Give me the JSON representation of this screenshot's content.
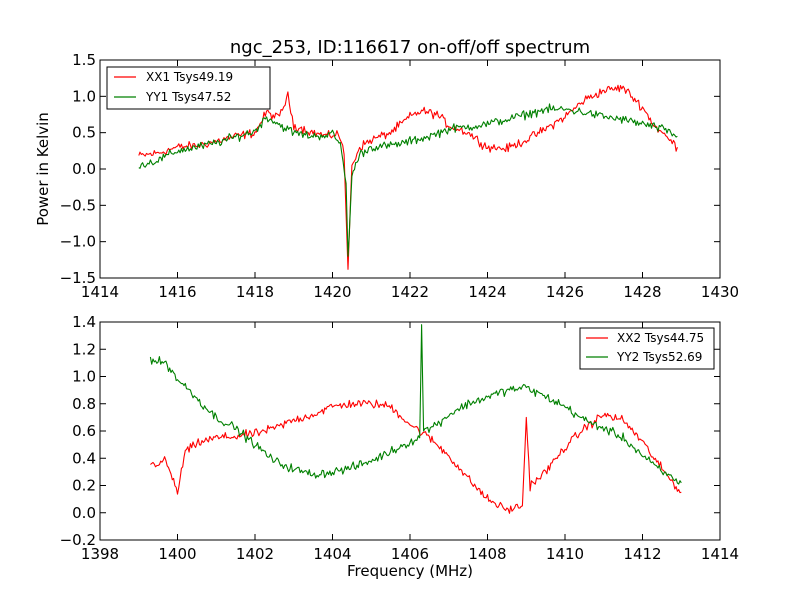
{
  "chart_data": [
    {
      "type": "line",
      "title": "ngc_253, ID:116617 on-off/off spectrum",
      "xlabel": "",
      "ylabel": "Power in Kelvin",
      "xlim": [
        1414,
        1430
      ],
      "ylim": [
        -1.5,
        1.5
      ],
      "xticks": [
        1414,
        1416,
        1418,
        1420,
        1422,
        1424,
        1426,
        1428,
        1430
      ],
      "yticks": [
        -1.5,
        -1.0,
        -0.5,
        0.0,
        0.5,
        1.0,
        1.5
      ],
      "ytick_labels": [
        "−1.5",
        "−1.0",
        "−0.5",
        "0.0",
        "0.5",
        "1.0",
        "1.5"
      ],
      "legend_position": "top-left",
      "grid": false,
      "series": [
        {
          "name": "XX1 Tsys49.19",
          "color": "#ff0000",
          "points": [
            [
              1415.0,
              0.18
            ],
            [
              1415.5,
              0.22
            ],
            [
              1416.0,
              0.3
            ],
            [
              1416.5,
              0.32
            ],
            [
              1417.0,
              0.38
            ],
            [
              1417.5,
              0.45
            ],
            [
              1418.0,
              0.5
            ],
            [
              1418.3,
              0.78
            ],
            [
              1418.6,
              0.7
            ],
            [
              1418.85,
              1.0
            ],
            [
              1419.0,
              0.6
            ],
            [
              1419.5,
              0.5
            ],
            [
              1419.9,
              0.45
            ],
            [
              1420.15,
              0.5
            ],
            [
              1420.3,
              0.2
            ],
            [
              1420.4,
              -1.38
            ],
            [
              1420.5,
              0.05
            ],
            [
              1420.7,
              0.3
            ],
            [
              1421.0,
              0.4
            ],
            [
              1421.5,
              0.5
            ],
            [
              1422.0,
              0.72
            ],
            [
              1422.3,
              0.8
            ],
            [
              1422.7,
              0.75
            ],
            [
              1423.0,
              0.6
            ],
            [
              1423.5,
              0.5
            ],
            [
              1424.0,
              0.3
            ],
            [
              1424.5,
              0.28
            ],
            [
              1425.0,
              0.4
            ],
            [
              1425.5,
              0.55
            ],
            [
              1426.0,
              0.72
            ],
            [
              1426.5,
              0.95
            ],
            [
              1427.0,
              1.08
            ],
            [
              1427.5,
              1.12
            ],
            [
              1428.0,
              0.85
            ],
            [
              1428.3,
              0.6
            ],
            [
              1428.6,
              0.45
            ],
            [
              1428.9,
              0.3
            ]
          ]
        },
        {
          "name": "YY1 Tsys47.52",
          "color": "#008000",
          "points": [
            [
              1415.0,
              0.05
            ],
            [
              1415.5,
              0.12
            ],
            [
              1416.0,
              0.25
            ],
            [
              1416.5,
              0.3
            ],
            [
              1417.0,
              0.36
            ],
            [
              1417.5,
              0.44
            ],
            [
              1418.0,
              0.52
            ],
            [
              1418.3,
              0.72
            ],
            [
              1418.6,
              0.62
            ],
            [
              1419.0,
              0.5
            ],
            [
              1419.5,
              0.45
            ],
            [
              1420.0,
              0.48
            ],
            [
              1420.2,
              0.35
            ],
            [
              1420.35,
              -0.2
            ],
            [
              1420.4,
              -1.2
            ],
            [
              1420.5,
              -0.1
            ],
            [
              1420.7,
              0.2
            ],
            [
              1421.0,
              0.3
            ],
            [
              1421.5,
              0.32
            ],
            [
              1422.0,
              0.38
            ],
            [
              1422.5,
              0.45
            ],
            [
              1423.0,
              0.55
            ],
            [
              1423.5,
              0.58
            ],
            [
              1424.0,
              0.62
            ],
            [
              1424.5,
              0.68
            ],
            [
              1425.0,
              0.75
            ],
            [
              1425.5,
              0.82
            ],
            [
              1426.0,
              0.82
            ],
            [
              1426.5,
              0.78
            ],
            [
              1427.0,
              0.72
            ],
            [
              1427.5,
              0.68
            ],
            [
              1428.0,
              0.62
            ],
            [
              1428.5,
              0.55
            ],
            [
              1428.9,
              0.45
            ]
          ]
        }
      ]
    },
    {
      "type": "line",
      "title": "",
      "xlabel": "Frequency (MHz)",
      "ylabel": "",
      "xlim": [
        1398,
        1414
      ],
      "ylim": [
        -0.2,
        1.4
      ],
      "xticks": [
        1398,
        1400,
        1402,
        1404,
        1406,
        1408,
        1410,
        1412,
        1414
      ],
      "yticks": [
        -0.2,
        0.0,
        0.2,
        0.4,
        0.6,
        0.8,
        1.0,
        1.2,
        1.4
      ],
      "ytick_labels": [
        "−0.2",
        "0.0",
        "0.2",
        "0.4",
        "0.6",
        "0.8",
        "1.0",
        "1.2",
        "1.4"
      ],
      "legend_position": "top-right",
      "grid": false,
      "series": [
        {
          "name": "XX2 Tsys44.75",
          "color": "#ff0000",
          "points": [
            [
              1399.3,
              0.35
            ],
            [
              1399.7,
              0.38
            ],
            [
              1400.0,
              0.15
            ],
            [
              1400.2,
              0.45
            ],
            [
              1400.6,
              0.52
            ],
            [
              1401.0,
              0.55
            ],
            [
              1401.5,
              0.56
            ],
            [
              1402.0,
              0.58
            ],
            [
              1402.5,
              0.62
            ],
            [
              1403.0,
              0.68
            ],
            [
              1403.5,
              0.72
            ],
            [
              1404.0,
              0.78
            ],
            [
              1404.5,
              0.8
            ],
            [
              1405.0,
              0.8
            ],
            [
              1405.5,
              0.78
            ],
            [
              1406.0,
              0.65
            ],
            [
              1406.5,
              0.55
            ],
            [
              1407.0,
              0.42
            ],
            [
              1407.5,
              0.25
            ],
            [
              1408.0,
              0.1
            ],
            [
              1408.5,
              0.02
            ],
            [
              1408.9,
              0.05
            ],
            [
              1409.0,
              0.7
            ],
            [
              1409.1,
              0.2
            ],
            [
              1409.5,
              0.3
            ],
            [
              1410.0,
              0.48
            ],
            [
              1410.5,
              0.62
            ],
            [
              1411.0,
              0.72
            ],
            [
              1411.5,
              0.68
            ],
            [
              1412.0,
              0.52
            ],
            [
              1412.5,
              0.32
            ],
            [
              1413.0,
              0.15
            ]
          ]
        },
        {
          "name": "YY2 Tsys52.69",
          "color": "#008000",
          "points": [
            [
              1399.3,
              1.12
            ],
            [
              1399.7,
              1.1
            ],
            [
              1400.0,
              0.98
            ],
            [
              1400.3,
              0.9
            ],
            [
              1400.7,
              0.78
            ],
            [
              1401.0,
              0.7
            ],
            [
              1401.5,
              0.62
            ],
            [
              1402.0,
              0.5
            ],
            [
              1402.5,
              0.38
            ],
            [
              1403.0,
              0.32
            ],
            [
              1403.5,
              0.28
            ],
            [
              1404.0,
              0.3
            ],
            [
              1404.5,
              0.33
            ],
            [
              1405.0,
              0.38
            ],
            [
              1405.5,
              0.45
            ],
            [
              1406.0,
              0.52
            ],
            [
              1406.25,
              0.55
            ],
            [
              1406.3,
              1.38
            ],
            [
              1406.35,
              0.6
            ],
            [
              1406.7,
              0.65
            ],
            [
              1407.0,
              0.72
            ],
            [
              1407.5,
              0.8
            ],
            [
              1408.0,
              0.85
            ],
            [
              1408.5,
              0.9
            ],
            [
              1409.0,
              0.92
            ],
            [
              1409.5,
              0.85
            ],
            [
              1410.0,
              0.78
            ],
            [
              1410.5,
              0.68
            ],
            [
              1411.0,
              0.62
            ],
            [
              1411.5,
              0.55
            ],
            [
              1412.0,
              0.42
            ],
            [
              1412.5,
              0.3
            ],
            [
              1413.0,
              0.22
            ]
          ]
        }
      ]
    }
  ]
}
